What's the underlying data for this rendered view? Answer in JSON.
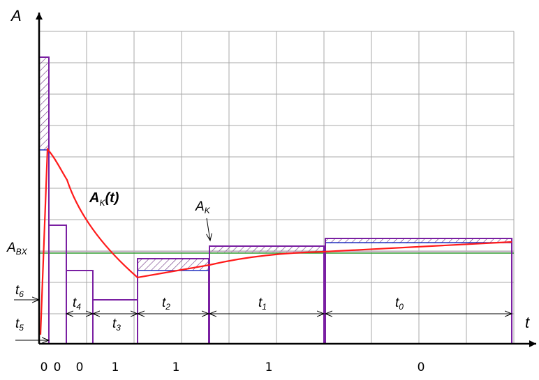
{
  "axes": {
    "y_label": "A",
    "x_label": "t"
  },
  "levels": {
    "input_level": "A",
    "input_level_sub": "BX"
  },
  "curve_label": {
    "main": "A",
    "sub": "K",
    "arg": "(t)"
  },
  "marker_label": {
    "main": "A",
    "sub": "K"
  },
  "intervals": [
    {
      "name": "t",
      "sub": "6"
    },
    {
      "name": "t",
      "sub": "5"
    },
    {
      "name": "t",
      "sub": "4"
    },
    {
      "name": "t",
      "sub": "3"
    },
    {
      "name": "t",
      "sub": "2"
    },
    {
      "name": "t",
      "sub": "1"
    },
    {
      "name": "t",
      "sub": "0"
    }
  ],
  "bits": [
    "0",
    "0",
    "0",
    "1",
    "1",
    "1",
    "0"
  ],
  "colors": {
    "grid": "#a8a8a8",
    "pulses": "#7a1fa2",
    "curve": "#ff1a1a",
    "input_level": "#2e9e2e",
    "axes": "#000000",
    "hatch": "#6a3080"
  }
}
